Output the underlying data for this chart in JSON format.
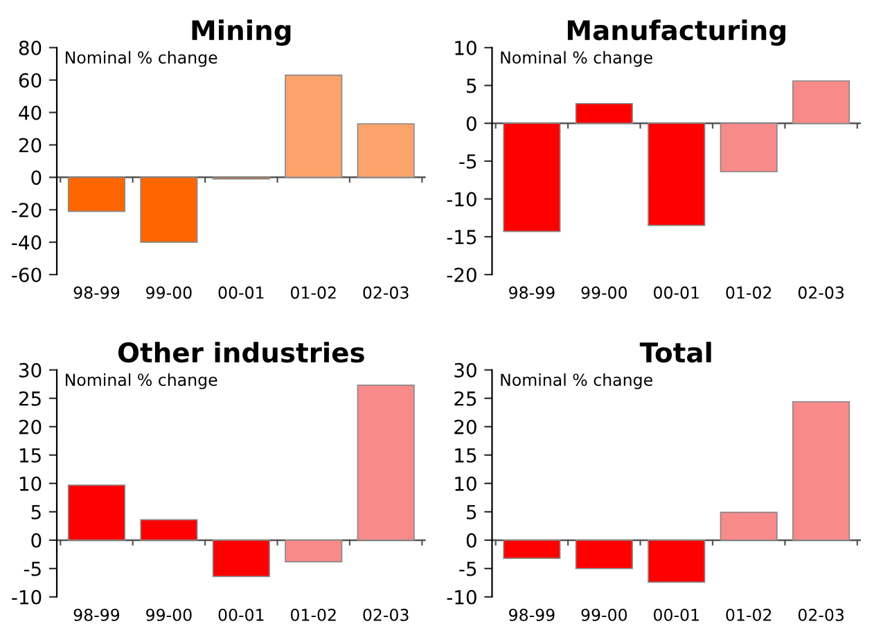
{
  "chart_data": [
    {
      "type": "bar",
      "title": "Mining",
      "ylabel": "Nominal % change",
      "categories": [
        "98-99",
        "99-00",
        "00-01",
        "01-02",
        "02-03"
      ],
      "values": [
        -21,
        -40,
        -1,
        63,
        33
      ],
      "colors": [
        "#ff6600",
        "#ff6600",
        "#ff6600",
        "#fba36a",
        "#fba36a"
      ],
      "ylim": [
        -60,
        80
      ],
      "yticks": [
        -60,
        -40,
        -20,
        0,
        20,
        40,
        60,
        80
      ],
      "legend": false
    },
    {
      "type": "bar",
      "title": "Manufacturing",
      "ylabel": "Nominal % change",
      "categories": [
        "98-99",
        "99-00",
        "00-01",
        "01-02",
        "02-03"
      ],
      "values": [
        -14.3,
        2.6,
        -13.5,
        -6.4,
        5.6
      ],
      "colors": [
        "#ff0000",
        "#ff0000",
        "#ff0000",
        "#f98a8a",
        "#f98a8a"
      ],
      "ylim": [
        -20,
        10
      ],
      "yticks": [
        -20,
        -15,
        -10,
        -5,
        0,
        5,
        10
      ],
      "legend": false
    },
    {
      "type": "bar",
      "title": "Other industries",
      "ylabel": "Nominal % change",
      "categories": [
        "98-99",
        "99-00",
        "00-01",
        "01-02",
        "02-03"
      ],
      "values": [
        9.7,
        3.6,
        -6.4,
        -3.8,
        27.3
      ],
      "colors": [
        "#ff0000",
        "#ff0000",
        "#ff0000",
        "#f98a8a",
        "#f98a8a"
      ],
      "ylim": [
        -10,
        30
      ],
      "yticks": [
        -10,
        -5,
        0,
        5,
        10,
        15,
        20,
        25,
        30
      ],
      "legend": false
    },
    {
      "type": "bar",
      "title": "Total",
      "ylabel": "Nominal % change",
      "categories": [
        "98-99",
        "99-00",
        "00-01",
        "01-02",
        "02-03"
      ],
      "values": [
        -3.2,
        -5,
        -7.4,
        4.9,
        24.4
      ],
      "colors": [
        "#ff0000",
        "#ff0000",
        "#ff0000",
        "#f98a8a",
        "#f98a8a"
      ],
      "ylim": [
        -10,
        30
      ],
      "yticks": [
        -10,
        -5,
        0,
        5,
        10,
        15,
        20,
        25,
        30
      ],
      "legend": false
    }
  ]
}
